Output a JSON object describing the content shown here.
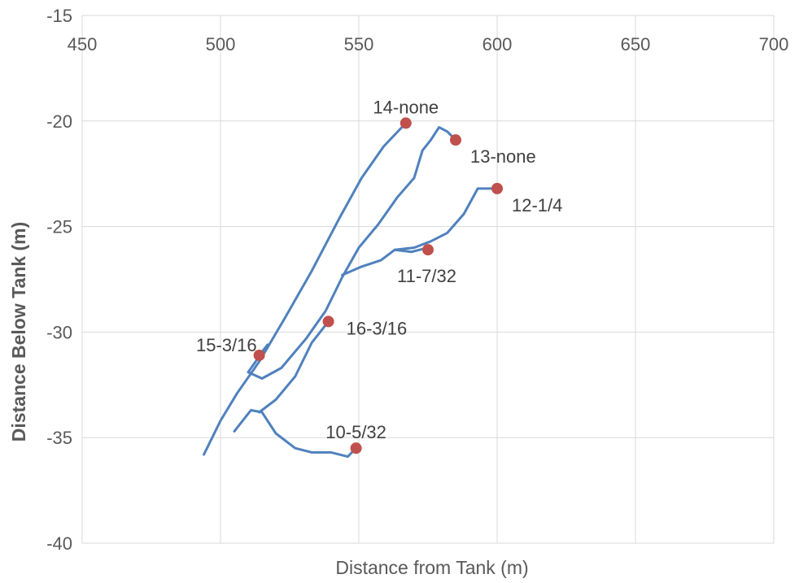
{
  "chart_data": {
    "type": "scatter",
    "title": "",
    "xlabel": "Distance from Tank (m)",
    "ylabel": "Distance Below Tank (m)",
    "xlim": [
      450,
      700
    ],
    "ylim": [
      -40,
      -15
    ],
    "x_ticks": [
      450,
      500,
      550,
      600,
      650,
      700
    ],
    "y_ticks": [
      -15,
      -20,
      -25,
      -30,
      -35,
      -40
    ],
    "x_axis_position": "top",
    "grid": true,
    "legend": "none",
    "line_color": "#4f81bd",
    "marker_color": "#c0504d",
    "lines": [
      {
        "id": "path-14",
        "points": [
          [
            494,
            -35.8
          ],
          [
            500,
            -34.2
          ],
          [
            506,
            -32.9
          ],
          [
            514,
            -31.4
          ],
          [
            523,
            -29.4
          ],
          [
            533,
            -27.1
          ],
          [
            543,
            -24.6
          ],
          [
            551,
            -22.7
          ],
          [
            559,
            -21.2
          ],
          [
            567,
            -20.1
          ]
        ]
      },
      {
        "id": "path-15",
        "points": [
          [
            514,
            -31.1
          ],
          [
            517,
            -30.6
          ],
          [
            510,
            -31.9
          ],
          [
            515,
            -32.2
          ],
          [
            522,
            -31.7
          ],
          [
            531,
            -30.3
          ],
          [
            538,
            -29.0
          ],
          [
            544,
            -27.4
          ],
          [
            550,
            -26.0
          ],
          [
            557,
            -24.9
          ],
          [
            564,
            -23.6
          ],
          [
            570,
            -22.7
          ],
          [
            573,
            -21.4
          ],
          [
            576,
            -20.9
          ],
          [
            579,
            -20.3
          ],
          [
            582,
            -20.5
          ],
          [
            585,
            -20.9
          ]
        ]
      },
      {
        "id": "path-11",
        "points": [
          [
            544,
            -27.3
          ],
          [
            551,
            -26.9
          ],
          [
            558,
            -26.6
          ],
          [
            563,
            -26.1
          ],
          [
            569,
            -26.2
          ],
          [
            575,
            -26.0
          ]
        ]
      },
      {
        "id": "path-12",
        "points": [
          [
            563,
            -26.1
          ],
          [
            570,
            -26.0
          ],
          [
            576,
            -25.7
          ],
          [
            582,
            -25.3
          ],
          [
            588,
            -24.4
          ],
          [
            593,
            -23.2
          ],
          [
            600,
            -23.2
          ]
        ]
      },
      {
        "id": "path-16",
        "points": [
          [
            505,
            -34.7
          ],
          [
            511,
            -33.7
          ],
          [
            515,
            -33.8
          ],
          [
            520,
            -34.8
          ],
          [
            527,
            -35.5
          ],
          [
            533,
            -35.7
          ],
          [
            540,
            -35.7
          ],
          [
            546,
            -35.9
          ],
          [
            549,
            -35.5
          ]
        ]
      },
      {
        "id": "path-16b",
        "points": [
          [
            539,
            -29.5
          ],
          [
            533,
            -30.5
          ],
          [
            527,
            -32.1
          ],
          [
            520,
            -33.2
          ],
          [
            514,
            -33.8
          ]
        ]
      }
    ],
    "points": [
      {
        "label": "14-none",
        "x": 567,
        "y": -20.1,
        "label_pos": "top"
      },
      {
        "label": "13-none",
        "x": 585,
        "y": -20.9,
        "label_pos": "below-right"
      },
      {
        "label": "12-1/4",
        "x": 600,
        "y": -23.2,
        "label_pos": "below-right"
      },
      {
        "label": "11-7/32",
        "x": 575,
        "y": -26.1,
        "label_pos": "below-left"
      },
      {
        "label": "16-3/16",
        "x": 539,
        "y": -29.5,
        "label_pos": "right"
      },
      {
        "label": "15-3/16",
        "x": 514,
        "y": -31.1,
        "label_pos": "left"
      },
      {
        "label": "10-5/32",
        "x": 549,
        "y": -35.5,
        "label_pos": "top"
      }
    ]
  }
}
